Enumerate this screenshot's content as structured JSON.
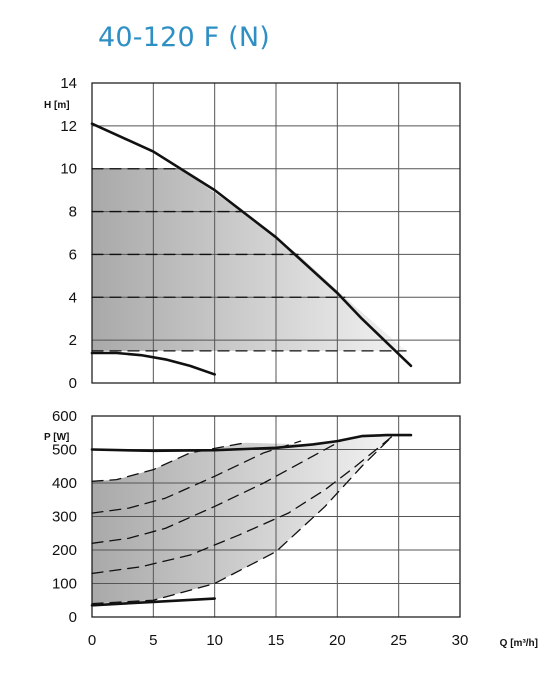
{
  "title": "40-120 F (N)",
  "chart_data": [
    {
      "type": "line",
      "ylabel": "H [m]",
      "xlim": [
        0,
        30
      ],
      "ylim": [
        0,
        14
      ],
      "x_ticks": [
        0,
        5,
        10,
        15,
        20,
        25,
        30
      ],
      "y_ticks": [
        0,
        2,
        4,
        6,
        8,
        10,
        12,
        14
      ],
      "grid": true,
      "series": [
        {
          "style": "solid",
          "x": [
            0,
            5,
            10,
            15,
            20,
            22,
            24,
            26
          ],
          "y": [
            12.1,
            10.8,
            9.0,
            6.8,
            4.2,
            3.0,
            1.9,
            0.8
          ]
        },
        {
          "style": "solid",
          "x": [
            0,
            2,
            4,
            6,
            8,
            10
          ],
          "y": [
            1.4,
            1.4,
            1.3,
            1.1,
            0.8,
            0.4
          ]
        },
        {
          "style": "dashed",
          "x": [
            0,
            7.2
          ],
          "y": [
            10,
            10
          ]
        },
        {
          "style": "dashed",
          "x": [
            0,
            12.2
          ],
          "y": [
            8,
            8
          ]
        },
        {
          "style": "dashed",
          "x": [
            0,
            16.8
          ],
          "y": [
            6,
            6
          ]
        },
        {
          "style": "dashed",
          "x": [
            0,
            20.6
          ],
          "y": [
            4,
            4
          ]
        },
        {
          "style": "dashed",
          "x": [
            0,
            25.6
          ],
          "y": [
            1.5,
            1.5
          ]
        }
      ],
      "shaded_area": {
        "x": [
          0,
          7.2,
          12.2,
          16.8,
          20.6,
          25.6,
          0
        ],
        "y": [
          10,
          10,
          8,
          6,
          4,
          1.5,
          1.5
        ]
      }
    },
    {
      "type": "line",
      "ylabel": "P [W]",
      "xlabel": "Q [m³/h]",
      "xlim": [
        0,
        30
      ],
      "ylim": [
        0,
        600
      ],
      "x_ticks": [
        0,
        5,
        10,
        15,
        20,
        25,
        30
      ],
      "y_ticks": [
        0,
        100,
        200,
        300,
        400,
        500,
        600
      ],
      "grid": true,
      "series": [
        {
          "style": "solid",
          "x": [
            0,
            5,
            10,
            15,
            18,
            20,
            22,
            24,
            26
          ],
          "y": [
            500,
            496,
            498,
            505,
            515,
            525,
            540,
            543,
            543
          ]
        },
        {
          "style": "solid",
          "x": [
            0,
            5,
            10
          ],
          "y": [
            35,
            45,
            55
          ]
        },
        {
          "style": "dashed",
          "x": [
            0,
            2,
            5,
            8,
            12.5
          ],
          "y": [
            405,
            410,
            440,
            490,
            520
          ]
        },
        {
          "style": "dashed",
          "x": [
            0,
            3,
            6,
            10,
            14,
            17
          ],
          "y": [
            310,
            325,
            355,
            420,
            490,
            525
          ]
        },
        {
          "style": "dashed",
          "x": [
            0,
            3,
            6,
            10,
            14,
            18,
            20.5
          ],
          "y": [
            220,
            235,
            265,
            330,
            400,
            480,
            530
          ]
        },
        {
          "style": "dashed",
          "x": [
            0,
            4,
            8,
            12,
            16,
            19,
            21.5,
            24.5
          ],
          "y": [
            130,
            150,
            185,
            245,
            310,
            380,
            450,
            540
          ]
        },
        {
          "style": "dashed",
          "x": [
            0,
            5,
            10,
            15,
            19,
            22,
            24.5
          ],
          "y": [
            40,
            50,
            100,
            195,
            330,
            450,
            540
          ]
        }
      ],
      "shaded_area": {
        "x": [
          0,
          5,
          10,
          15,
          19,
          22,
          24.5,
          22,
          20,
          18,
          12.5,
          8,
          5,
          2,
          0
        ],
        "y": [
          40,
          50,
          100,
          195,
          330,
          450,
          540,
          540,
          525,
          515,
          520,
          490,
          440,
          410,
          405
        ]
      }
    }
  ]
}
